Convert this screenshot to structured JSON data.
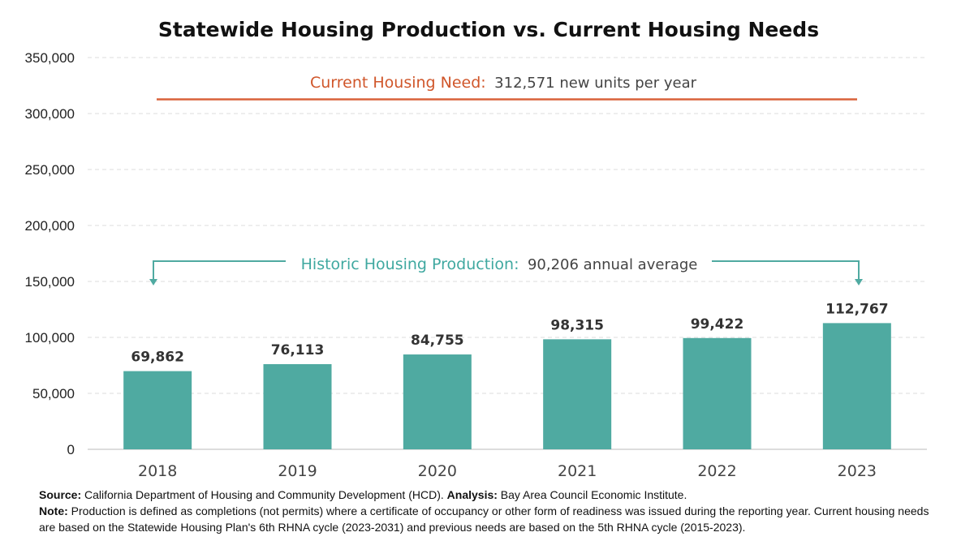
{
  "colors": {
    "bar": "#4faaa1",
    "need_line": "#d9623a",
    "arrow": "#4faaa1",
    "grid": "#dddddd"
  },
  "chart_data": {
    "type": "bar",
    "title": "Statewide Housing Production vs. Current Housing Needs",
    "categories": [
      "2018",
      "2019",
      "2020",
      "2021",
      "2022",
      "2023"
    ],
    "values": [
      69862,
      76113,
      84755,
      98315,
      99422,
      112767
    ],
    "value_labels": [
      "69,862",
      "76,113",
      "84,755",
      "98,315",
      "99,422",
      "112,767"
    ],
    "ylim": [
      0,
      350000
    ],
    "yticks": [
      0,
      50000,
      100000,
      150000,
      200000,
      250000,
      300000,
      350000
    ],
    "ytick_labels": [
      "0",
      "50,000",
      "100,000",
      "150,000",
      "200,000",
      "250,000",
      "300,000",
      "350,000"
    ],
    "grid": true,
    "xlabel": "",
    "ylabel": "",
    "annotations": {
      "current_need": {
        "label": "Current Housing Need:",
        "text": "312,571 new units per year",
        "value": 312571
      },
      "historic": {
        "label": "Historic Housing Production:",
        "text": "90,206 annual average",
        "value": 90206
      }
    }
  },
  "footer": {
    "source_label": "Source:",
    "source_text": "California Department of Housing and Community Development (HCD).",
    "analysis_label": "Analysis:",
    "analysis_text": "Bay Area Council Economic Institute.",
    "note_label": "Note:",
    "note_text": "Production is defined as completions (not permits) where a certificate of occupancy or other form of readiness was issued during the reporting year. Current housing needs are based on the Statewide Housing Plan's 6th RHNA cycle (2023-2031) and previous needs are based on the 5th RHNA cycle (2015-2023)."
  }
}
